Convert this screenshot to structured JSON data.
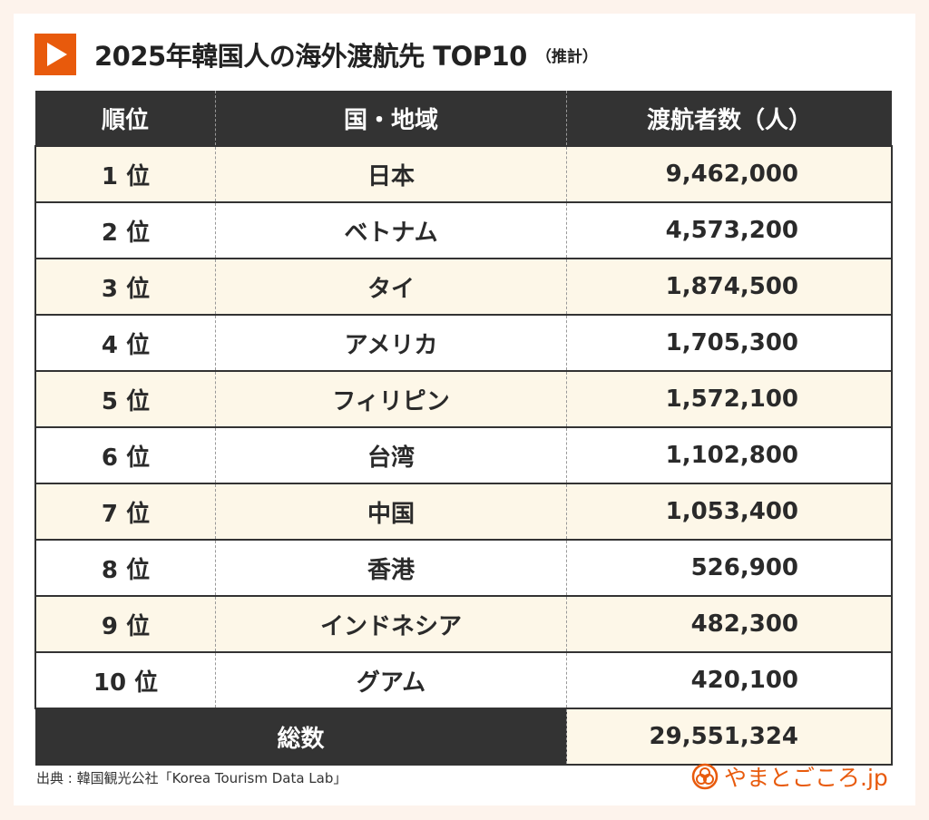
{
  "title": {
    "main": "2025年韓国人の海外渡航先 TOP10",
    "sub": "（推計）"
  },
  "table": {
    "headers": [
      "順位",
      "国・地域",
      "渡航者数（人）"
    ],
    "rows": [
      {
        "rank": "1 位",
        "country": "日本",
        "count": "9,462,000"
      },
      {
        "rank": "2 位",
        "country": "ベトナム",
        "count": "4,573,200"
      },
      {
        "rank": "3 位",
        "country": "タイ",
        "count": "1,874,500"
      },
      {
        "rank": "4 位",
        "country": "アメリカ",
        "count": "1,705,300"
      },
      {
        "rank": "5 位",
        "country": "フィリピン",
        "count": "1,572,100"
      },
      {
        "rank": "6 位",
        "country": "台湾",
        "count": "1,102,800"
      },
      {
        "rank": "7 位",
        "country": "中国",
        "count": "1,053,400"
      },
      {
        "rank": "8 位",
        "country": "香港",
        "count": "526,900"
      },
      {
        "rank": "9 位",
        "country": "インドネシア",
        "count": "482,300"
      },
      {
        "rank": "10 位",
        "country": "グアム",
        "count": "420,100"
      }
    ],
    "total_label": "総数",
    "total_value": "29,551,324"
  },
  "source": "出典 : 韓国観光公社「Korea Tourism Data Lab」",
  "logo": "やまとごころ.jp",
  "colors": {
    "accent": "#e85a0c",
    "header": "#333333",
    "stripe": "#fdf7e8"
  }
}
